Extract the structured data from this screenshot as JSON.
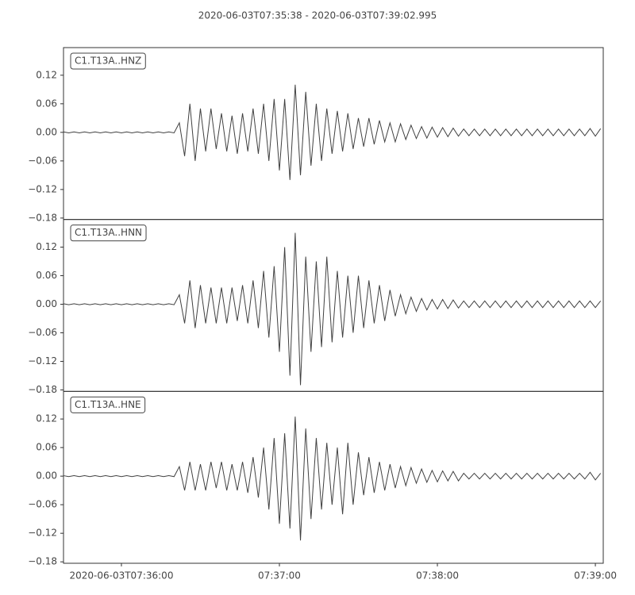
{
  "title": "2020-06-03T07:35:38  -  2020-06-03T07:39:02.995",
  "chart_data": [
    {
      "type": "line",
      "x": [
        0,
        2,
        4,
        6,
        8,
        10,
        12,
        14,
        16,
        18,
        20,
        22,
        24,
        26,
        28,
        30,
        32,
        34,
        36,
        38,
        40,
        42,
        44,
        46,
        48,
        50,
        52,
        54,
        56,
        58,
        60,
        62,
        64,
        66,
        68,
        70,
        72,
        74,
        76,
        78,
        80,
        82,
        84,
        86,
        88,
        90,
        92,
        94,
        96,
        98,
        100,
        102,
        104,
        106,
        108,
        110,
        112,
        114,
        116,
        118,
        120,
        122,
        124,
        126,
        128,
        130,
        132,
        134,
        136,
        138,
        140,
        142,
        144,
        146,
        148,
        150,
        152,
        154,
        156,
        158,
        160,
        162,
        164,
        166,
        168,
        170,
        172,
        174,
        176,
        178,
        180,
        182,
        184,
        186,
        188,
        190,
        192,
        194,
        196,
        198,
        200,
        202,
        204
      ],
      "series": [
        {
          "name": "C1.T13A..HNZ",
          "color": "#404040",
          "values": [
            0.001,
            -0.001,
            0.001,
            -0.001,
            0.001,
            -0.001,
            0.001,
            -0.001,
            0.001,
            -0.001,
            0.001,
            -0.001,
            0.001,
            -0.001,
            0.001,
            -0.001,
            0.001,
            -0.001,
            0.001,
            -0.001,
            0.001,
            -0.001,
            0.02,
            -0.05,
            0.06,
            -0.06,
            0.05,
            -0.04,
            0.05,
            -0.035,
            0.04,
            -0.04,
            0.035,
            -0.045,
            0.04,
            -0.04,
            0.05,
            -0.045,
            0.06,
            -0.06,
            0.07,
            -0.08,
            0.07,
            -0.1,
            0.1,
            -0.09,
            0.085,
            -0.07,
            0.06,
            -0.06,
            0.05,
            -0.045,
            0.045,
            -0.04,
            0.04,
            -0.035,
            0.03,
            -0.03,
            0.03,
            -0.025,
            0.025,
            -0.02,
            0.02,
            -0.02,
            0.018,
            -0.015,
            0.015,
            -0.013,
            0.012,
            -0.012,
            0.011,
            -0.01,
            0.01,
            -0.009,
            0.009,
            -0.008,
            0.007,
            -0.007,
            0.007,
            -0.007,
            0.007,
            -0.007,
            0.007,
            -0.007,
            0.007,
            -0.007,
            0.007,
            -0.007,
            0.007,
            -0.007,
            0.007,
            -0.007,
            0.007,
            -0.007,
            0.007,
            -0.007,
            0.007,
            -0.007,
            0.007,
            -0.007,
            0.008,
            -0.008,
            0.008
          ]
        }
      ],
      "xlim": [
        0,
        204.995
      ],
      "ylim": [
        -0.183,
        0.178
      ],
      "yticks": [
        {
          "value": -0.18,
          "label": "−0.18"
        },
        {
          "value": -0.12,
          "label": "−0.12"
        },
        {
          "value": -0.06,
          "label": "−0.06"
        },
        {
          "value": 0,
          "label": "0.00"
        },
        0.06,
        0.12
      ]
    },
    {
      "type": "line",
      "x": [
        0,
        2,
        4,
        6,
        8,
        10,
        12,
        14,
        16,
        18,
        20,
        22,
        24,
        26,
        28,
        30,
        32,
        34,
        36,
        38,
        40,
        42,
        44,
        46,
        48,
        50,
        52,
        54,
        56,
        58,
        60,
        62,
        64,
        66,
        68,
        70,
        72,
        74,
        76,
        78,
        80,
        82,
        84,
        86,
        88,
        90,
        92,
        94,
        96,
        98,
        100,
        102,
        104,
        106,
        108,
        110,
        112,
        114,
        116,
        118,
        120,
        122,
        124,
        126,
        128,
        130,
        132,
        134,
        136,
        138,
        140,
        142,
        144,
        146,
        148,
        150,
        152,
        154,
        156,
        158,
        160,
        162,
        164,
        166,
        168,
        170,
        172,
        174,
        176,
        178,
        180,
        182,
        184,
        186,
        188,
        190,
        192,
        194,
        196,
        198,
        200,
        202,
        204
      ],
      "series": [
        {
          "name": "C1.T13A..HNN",
          "color": "#404040",
          "values": [
            0.001,
            -0.001,
            0.001,
            -0.001,
            0.001,
            -0.001,
            0.001,
            -0.001,
            0.001,
            -0.001,
            0.001,
            -0.001,
            0.001,
            -0.001,
            0.001,
            -0.001,
            0.001,
            -0.001,
            0.001,
            -0.001,
            0.001,
            -0.001,
            0.02,
            -0.04,
            0.05,
            -0.05,
            0.04,
            -0.04,
            0.035,
            -0.04,
            0.035,
            -0.04,
            0.035,
            -0.035,
            0.04,
            -0.04,
            0.05,
            -0.05,
            0.07,
            -0.07,
            0.08,
            -0.1,
            0.12,
            -0.15,
            0.15,
            -0.17,
            0.1,
            -0.1,
            0.09,
            -0.09,
            0.1,
            -0.08,
            0.07,
            -0.07,
            0.06,
            -0.06,
            0.06,
            -0.05,
            0.05,
            -0.04,
            0.04,
            -0.035,
            0.03,
            -0.025,
            0.02,
            -0.02,
            0.015,
            -0.015,
            0.012,
            -0.012,
            0.01,
            -0.01,
            0.01,
            -0.009,
            0.009,
            -0.008,
            0.007,
            -0.007,
            0.007,
            -0.007,
            0.007,
            -0.007,
            0.007,
            -0.007,
            0.007,
            -0.007,
            0.007,
            -0.007,
            0.007,
            -0.007,
            0.007,
            -0.007,
            0.007,
            -0.007,
            0.007,
            -0.007,
            0.007,
            -0.007,
            0.007,
            -0.007,
            0.007,
            -0.007,
            0.007
          ]
        }
      ],
      "xlim": [
        0,
        204.995
      ],
      "ylim": [
        -0.183,
        0.178
      ],
      "yticks": [
        {
          "value": -0.18,
          "label": "−0.18"
        },
        {
          "value": -0.12,
          "label": "−0.12"
        },
        {
          "value": -0.06,
          "label": "−0.06"
        },
        {
          "value": 0,
          "label": "0.00"
        },
        0.06,
        0.12
      ]
    },
    {
      "type": "line",
      "x": [
        0,
        2,
        4,
        6,
        8,
        10,
        12,
        14,
        16,
        18,
        20,
        22,
        24,
        26,
        28,
        30,
        32,
        34,
        36,
        38,
        40,
        42,
        44,
        46,
        48,
        50,
        52,
        54,
        56,
        58,
        60,
        62,
        64,
        66,
        68,
        70,
        72,
        74,
        76,
        78,
        80,
        82,
        84,
        86,
        88,
        90,
        92,
        94,
        96,
        98,
        100,
        102,
        104,
        106,
        108,
        110,
        112,
        114,
        116,
        118,
        120,
        122,
        124,
        126,
        128,
        130,
        132,
        134,
        136,
        138,
        140,
        142,
        144,
        146,
        148,
        150,
        152,
        154,
        156,
        158,
        160,
        162,
        164,
        166,
        168,
        170,
        172,
        174,
        176,
        178,
        180,
        182,
        184,
        186,
        188,
        190,
        192,
        194,
        196,
        198,
        200,
        202,
        204
      ],
      "series": [
        {
          "name": "C1.T13A..HNE",
          "color": "#404040",
          "values": [
            0.001,
            -0.001,
            0.001,
            -0.001,
            0.001,
            -0.001,
            0.001,
            -0.001,
            0.001,
            -0.001,
            0.001,
            -0.001,
            0.001,
            -0.001,
            0.001,
            -0.001,
            0.001,
            -0.001,
            0.001,
            -0.001,
            0.001,
            -0.001,
            0.02,
            -0.03,
            0.03,
            -0.03,
            0.025,
            -0.03,
            0.03,
            -0.025,
            0.03,
            -0.03,
            0.025,
            -0.03,
            0.03,
            -0.035,
            0.04,
            -0.045,
            0.06,
            -0.07,
            0.08,
            -0.1,
            0.09,
            -0.11,
            0.125,
            -0.135,
            0.1,
            -0.09,
            0.08,
            -0.07,
            0.07,
            -0.06,
            0.06,
            -0.08,
            0.07,
            -0.06,
            0.05,
            -0.04,
            0.04,
            -0.035,
            0.03,
            -0.03,
            0.025,
            -0.025,
            0.02,
            -0.02,
            0.018,
            -0.015,
            0.015,
            -0.013,
            0.012,
            -0.012,
            0.011,
            -0.01,
            0.01,
            -0.01,
            0.006,
            -0.006,
            0.006,
            -0.006,
            0.006,
            -0.006,
            0.006,
            -0.006,
            0.006,
            -0.006,
            0.006,
            -0.006,
            0.006,
            -0.006,
            0.006,
            -0.006,
            0.006,
            -0.006,
            0.006,
            -0.006,
            0.006,
            -0.006,
            0.006,
            -0.006,
            0.008,
            -0.008,
            0.006
          ]
        }
      ],
      "xlim": [
        0,
        204.995
      ],
      "ylim": [
        -0.183,
        0.178
      ],
      "yticks": [
        {
          "value": -0.18,
          "label": "−0.18"
        },
        {
          "value": -0.12,
          "label": "−0.12"
        },
        {
          "value": -0.06,
          "label": "−0.06"
        },
        {
          "value": 0,
          "label": "0.00"
        },
        0.06,
        0.12
      ],
      "xticks": [
        {
          "value": 22,
          "label": "2020-06-03T07:36:00"
        },
        {
          "value": 82,
          "label": "07:37:00"
        },
        {
          "value": 142,
          "label": "07:38:00"
        },
        {
          "value": 202,
          "label": "07:39:00"
        }
      ]
    }
  ]
}
